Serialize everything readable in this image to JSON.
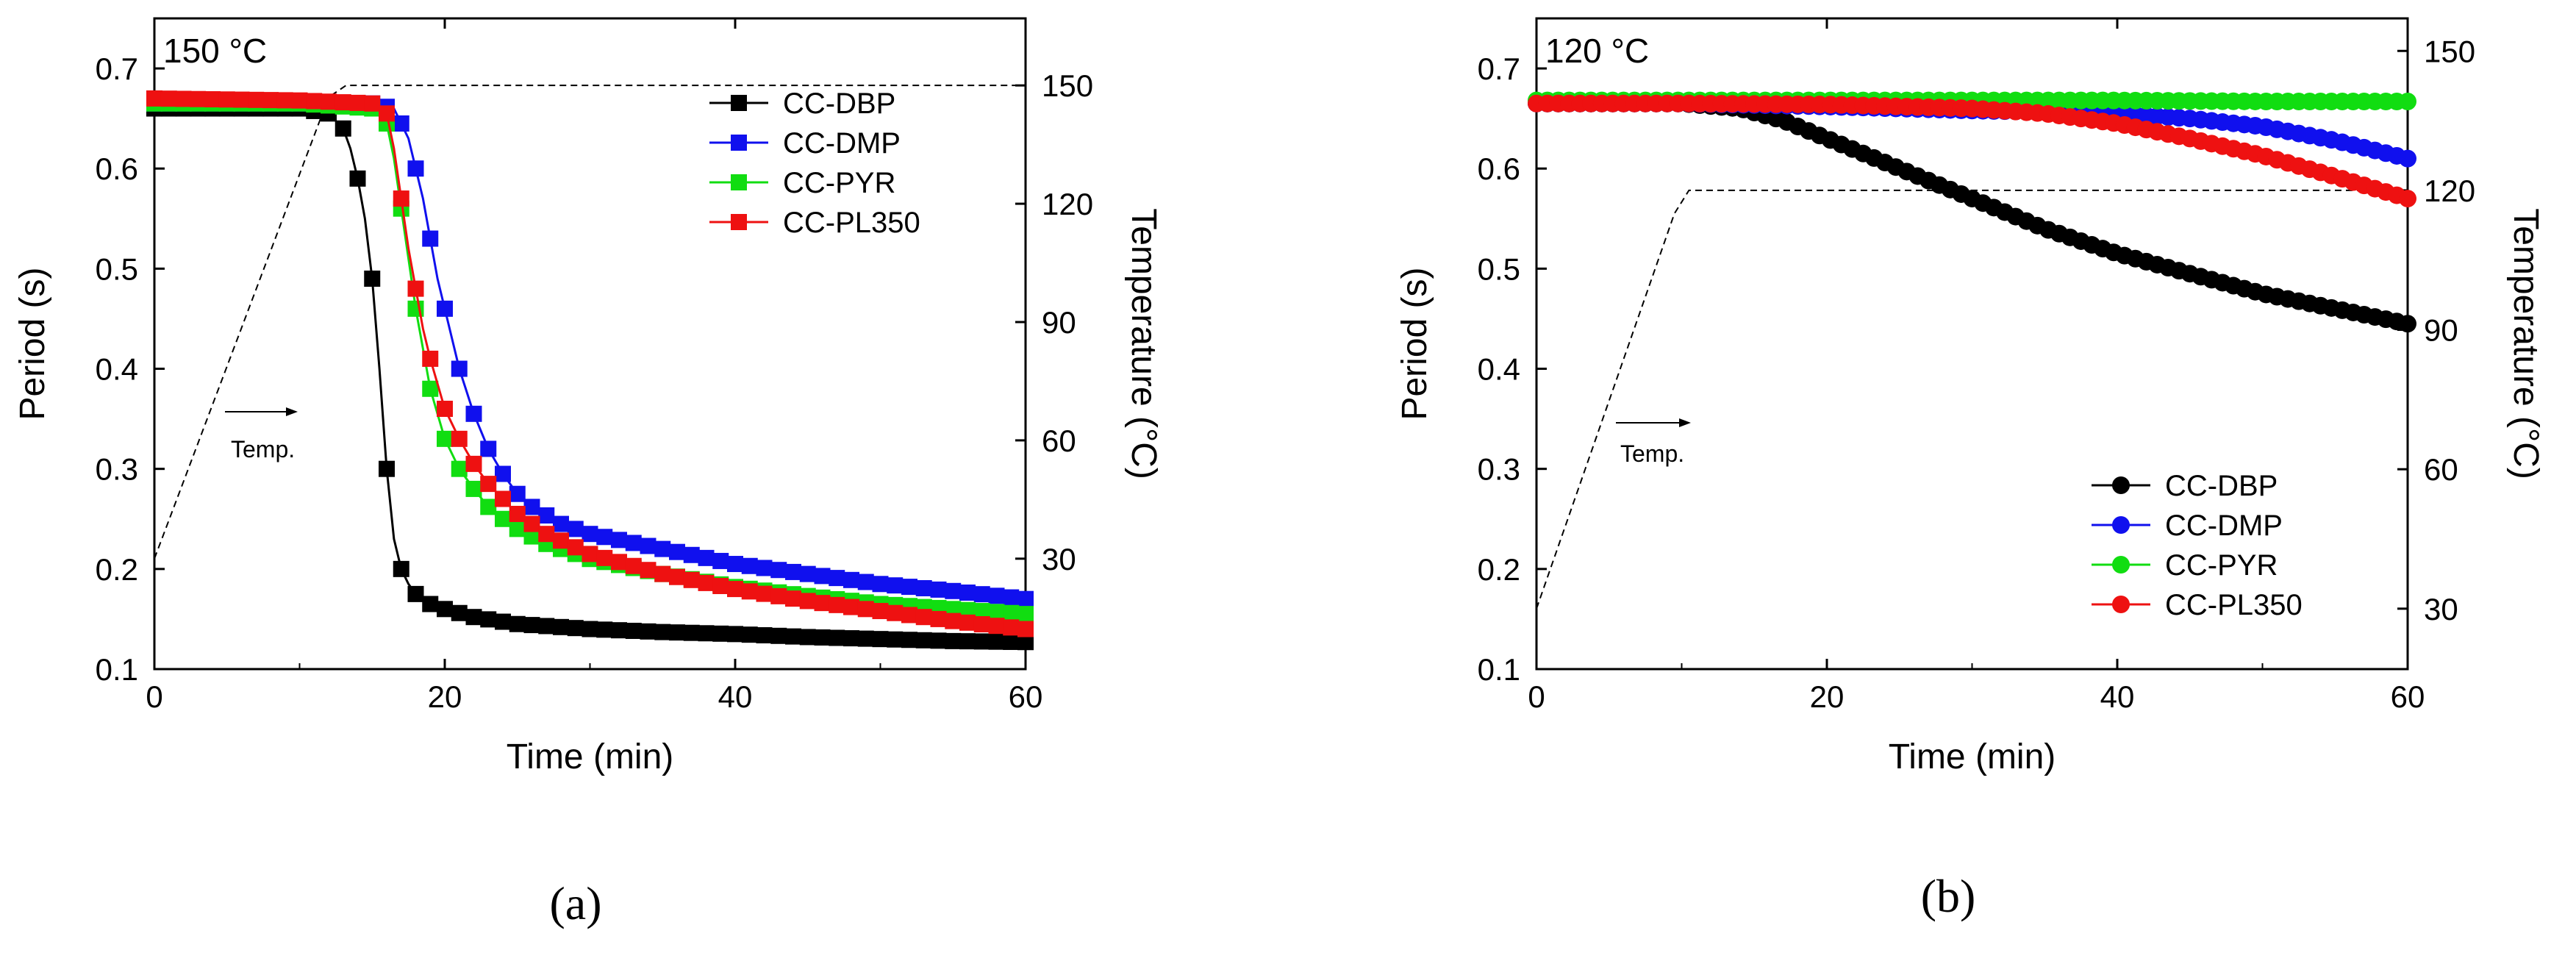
{
  "colors": {
    "CC-DBP": "#000000",
    "CC-DMP": "#1010ee",
    "CC-PYR": "#11dd11",
    "CC-PL350": "#ee1111"
  },
  "chart_data": [
    {
      "type": "line",
      "panel_label": "(a)",
      "annotation": "150 °C",
      "temp_arrow_label": "Temp.",
      "marker": "square",
      "xlabel": "Time (min)",
      "ylabel": "Period (s)",
      "y2label": "Temperature (°C)",
      "xlim": [
        0,
        60
      ],
      "ylim": [
        0.1,
        0.75
      ],
      "y2lim": [
        2,
        167
      ],
      "xticks": [
        "0",
        "20",
        "40",
        "60"
      ],
      "yticks": [
        "0.1",
        "0.2",
        "0.3",
        "0.4",
        "0.5",
        "0.6",
        "0.7"
      ],
      "y2ticks": [
        "30",
        "60",
        "90",
        "120",
        "150"
      ],
      "legend_position": "top-right",
      "temperature": {
        "x": [
          0,
          12,
          13.2,
          35,
          60
        ],
        "y": [
          30,
          147,
          150,
          150,
          150
        ]
      },
      "series": [
        {
          "name": "CC-DBP",
          "x": [
            0,
            10,
            12,
            13,
            13.5,
            14,
            14.5,
            15,
            15.5,
            16,
            16.5,
            17,
            17.5,
            18,
            19,
            20,
            22,
            25,
            30,
            35,
            40,
            45,
            50,
            55,
            60
          ],
          "y": [
            0.66,
            0.66,
            0.655,
            0.64,
            0.62,
            0.59,
            0.55,
            0.49,
            0.4,
            0.3,
            0.23,
            0.2,
            0.185,
            0.175,
            0.165,
            0.16,
            0.152,
            0.145,
            0.14,
            0.137,
            0.135,
            0.132,
            0.13,
            0.128,
            0.127
          ]
        },
        {
          "name": "CC-DMP",
          "x": [
            0,
            10,
            15,
            16.5,
            17.5,
            18,
            18.5,
            19,
            19.5,
            20,
            21,
            22,
            23,
            24,
            25,
            26,
            28,
            30,
            35,
            40,
            45,
            50,
            55,
            60
          ],
          "y": [
            0.665,
            0.665,
            0.665,
            0.66,
            0.63,
            0.6,
            0.57,
            0.53,
            0.49,
            0.46,
            0.4,
            0.355,
            0.32,
            0.295,
            0.275,
            0.262,
            0.245,
            0.235,
            0.22,
            0.205,
            0.195,
            0.185,
            0.178,
            0.17
          ]
        },
        {
          "name": "CC-PYR",
          "x": [
            0,
            10,
            15,
            16,
            16.5,
            17,
            17.5,
            18,
            18.5,
            19,
            20,
            21,
            22,
            23,
            24,
            25,
            27,
            30,
            35,
            40,
            45,
            50,
            55,
            60
          ],
          "y": [
            0.665,
            0.665,
            0.66,
            0.645,
            0.61,
            0.56,
            0.51,
            0.46,
            0.42,
            0.38,
            0.33,
            0.3,
            0.28,
            0.262,
            0.25,
            0.24,
            0.225,
            0.21,
            0.195,
            0.182,
            0.173,
            0.165,
            0.16,
            0.155
          ]
        },
        {
          "name": "CC-PL350",
          "x": [
            0,
            10,
            15,
            16,
            16.5,
            17,
            17.5,
            18,
            18.5,
            19,
            20,
            21,
            22,
            23,
            24,
            25,
            27,
            30,
            35,
            40,
            45,
            50,
            55,
            60
          ],
          "y": [
            0.67,
            0.668,
            0.665,
            0.655,
            0.62,
            0.57,
            0.52,
            0.48,
            0.44,
            0.41,
            0.36,
            0.33,
            0.305,
            0.285,
            0.27,
            0.255,
            0.235,
            0.215,
            0.195,
            0.18,
            0.168,
            0.158,
            0.148,
            0.14
          ]
        }
      ]
    },
    {
      "type": "line",
      "panel_label": "(b)",
      "annotation": "120 °C",
      "temp_arrow_label": "Temp.",
      "marker": "circle",
      "xlabel": "Time (min)",
      "ylabel": "Period (s)",
      "y2label": "Temperature (°C)",
      "xlim": [
        0,
        60
      ],
      "ylim": [
        0.1,
        0.75
      ],
      "y2lim": [
        17,
        157
      ],
      "xticks": [
        "0",
        "20",
        "40",
        "60"
      ],
      "yticks": [
        "0.1",
        "0.2",
        "0.3",
        "0.4",
        "0.5",
        "0.6",
        "0.7"
      ],
      "y2ticks": [
        "30",
        "60",
        "90",
        "120",
        "150"
      ],
      "legend_position": "bottom-right",
      "temperature": {
        "x": [
          0,
          9.5,
          10.5,
          30,
          60
        ],
        "y": [
          30,
          115,
          120,
          120,
          120
        ]
      },
      "series": [
        {
          "name": "CC-DBP",
          "x": [
            0,
            10,
            14,
            17,
            20,
            25,
            30,
            35,
            40,
            45,
            50,
            55,
            60
          ],
          "y": [
            0.665,
            0.665,
            0.66,
            0.648,
            0.63,
            0.6,
            0.57,
            0.54,
            0.515,
            0.495,
            0.475,
            0.46,
            0.445
          ]
        },
        {
          "name": "CC-DMP",
          "x": [
            0,
            10,
            20,
            30,
            40,
            45,
            50,
            55,
            60
          ],
          "y": [
            0.665,
            0.665,
            0.662,
            0.658,
            0.655,
            0.65,
            0.642,
            0.628,
            0.61
          ]
        },
        {
          "name": "CC-PYR",
          "x": [
            0,
            10,
            20,
            30,
            40,
            50,
            60
          ],
          "y": [
            0.668,
            0.668,
            0.668,
            0.668,
            0.668,
            0.667,
            0.667
          ]
        },
        {
          "name": "CC-PL350",
          "x": [
            0,
            10,
            20,
            30,
            35,
            40,
            45,
            50,
            55,
            60
          ],
          "y": [
            0.665,
            0.665,
            0.664,
            0.66,
            0.655,
            0.645,
            0.63,
            0.613,
            0.592,
            0.57
          ]
        }
      ]
    }
  ]
}
